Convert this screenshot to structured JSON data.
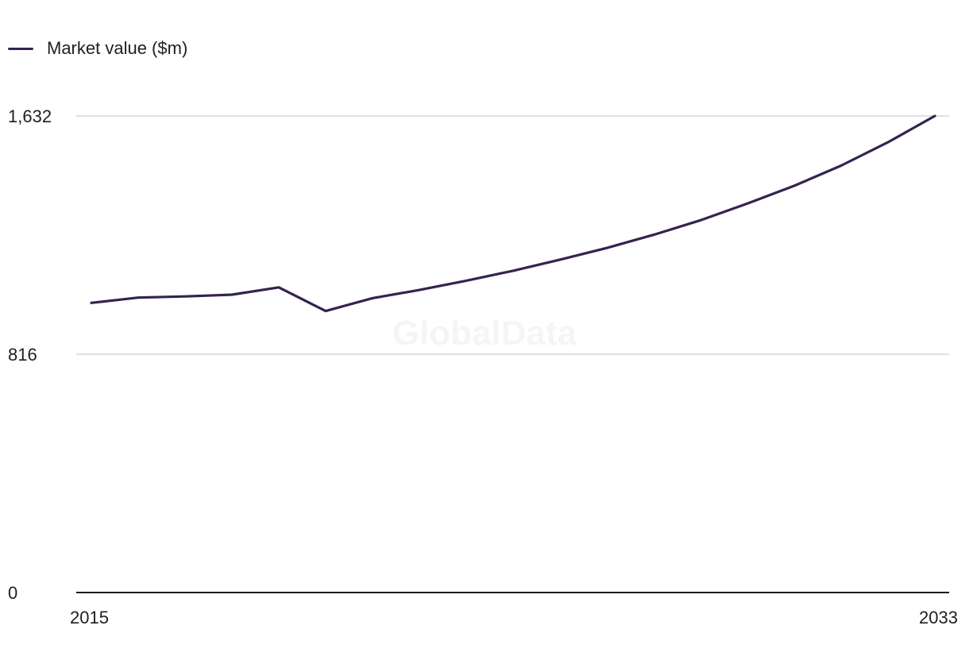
{
  "watermark": "GlobalData",
  "legend": {
    "label": "Market value ($m)",
    "color": "#35234f"
  },
  "colors": {
    "line": "#35234f",
    "grid": "#d6d6d6",
    "axis": "#1a1a1a"
  },
  "chart_data": {
    "type": "line",
    "title": "",
    "xlabel": "",
    "ylabel": "",
    "x": [
      2015,
      2016,
      2017,
      2018,
      2019,
      2020,
      2021,
      2022,
      2023,
      2024,
      2025,
      2026,
      2027,
      2028,
      2029,
      2030,
      2031,
      2032,
      2033
    ],
    "series": [
      {
        "name": "Market value ($m)",
        "values": [
          992,
          1010,
          1014,
          1020,
          1045,
          964,
          1008,
          1036,
          1068,
          1102,
          1140,
          1180,
          1225,
          1275,
          1332,
          1393,
          1462,
          1542,
          1632
        ]
      }
    ],
    "xlim": [
      2015,
      2033
    ],
    "ylim": [
      0,
      1632
    ],
    "y_ticks": [
      0,
      816,
      1632
    ],
    "y_tick_labels": [
      "0",
      "816",
      "1,632"
    ],
    "x_ticks": [
      2015,
      2033
    ],
    "x_tick_labels": [
      "2015",
      "2033"
    ],
    "grid": true,
    "legend_position": "top-left"
  }
}
